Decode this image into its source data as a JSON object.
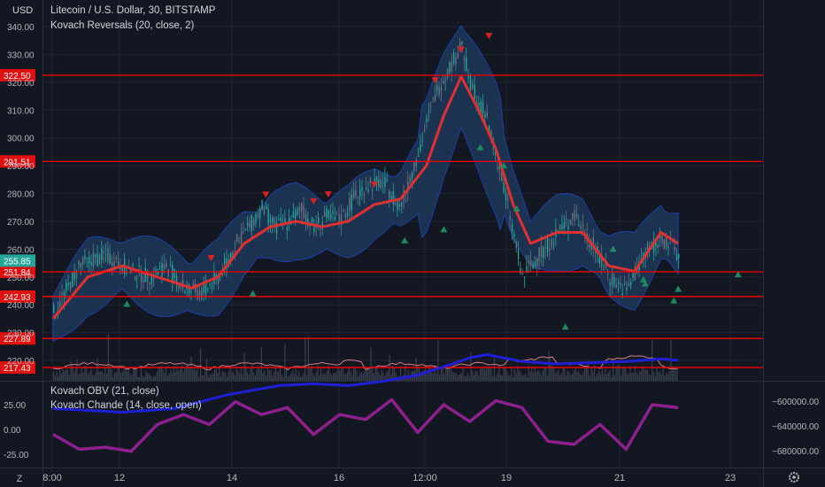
{
  "header": {
    "currency": "USD",
    "symbol_line": "Litecoin / U.S. Dollar, 30, BITSTAMP",
    "indicator_line": "Kovach Reversals (20, close, 2)"
  },
  "lower_pane": {
    "legend_obv": "Kovach OBV (21, close)",
    "legend_chande": "Kovach Chande (14, close, open)",
    "left_ticks": [
      "25.00",
      "0.00",
      "-25.00"
    ],
    "right_ticks": [
      "−600000.00",
      "−640000.00",
      "−680000.00"
    ]
  },
  "time_axis": {
    "labels": [
      "8:00",
      "12",
      "14",
      "16",
      "12:00",
      "19",
      "21",
      "23"
    ]
  },
  "corner": {
    "left_label": "Z",
    "right_icon": "gear-icon"
  },
  "colors": {
    "background": "#131722",
    "candle": "#26a69a",
    "band_fill": "#1f3d60",
    "band_line": "#1e3fa8",
    "ma_line": "#e03030",
    "level_line": "#ff0000",
    "signal_down": "#e02020",
    "signal_up": "#1f8a60",
    "obv_line": "#1f1fd6",
    "chande_line": "#8e1f8e"
  },
  "chart_data": {
    "type": "candlestick",
    "title": "Litecoin / U.S. Dollar, 30, BITSTAMP",
    "y_axis_ticks": [
      "340.00",
      "330.00",
      "320.00",
      "310.00",
      "300.00",
      "290.00",
      "280.00",
      "270.00",
      "260.00",
      "250.00",
      "240.00",
      "230.00",
      "220.00"
    ],
    "ylim": [
      214,
      344
    ],
    "current_price_label": "255.85",
    "horizontal_levels": [
      {
        "label": "322.50",
        "value": 322.5
      },
      {
        "label": "291.51",
        "value": 291.51
      },
      {
        "label": "251.84",
        "value": 251.84
      },
      {
        "label": "242.93",
        "value": 242.93
      },
      {
        "label": "227.89",
        "value": 227.89
      },
      {
        "label": "217.43",
        "value": 217.43
      }
    ],
    "price_path_x": [
      0,
      3,
      6,
      9,
      11,
      13,
      15,
      17,
      19,
      21,
      22.5,
      24,
      25.5,
      27,
      28.5,
      30,
      31.5,
      33,
      34.5,
      36,
      38,
      40,
      42,
      44,
      45.5,
      47,
      48,
      50,
      52,
      54,
      56,
      58,
      60,
      62,
      64,
      66,
      68,
      70,
      72
    ],
    "price_path_y": [
      237,
      254,
      258,
      252,
      250,
      254,
      246,
      244,
      250,
      262,
      268,
      275,
      268,
      270,
      274,
      268,
      272,
      270,
      278,
      283,
      284,
      275,
      295,
      316,
      325,
      333,
      320,
      306,
      280,
      250,
      258,
      266,
      272,
      262,
      250,
      245,
      258,
      264,
      258
    ],
    "ma_x": [
      0,
      4,
      8,
      12,
      16,
      19,
      22,
      25,
      28,
      31,
      34,
      37,
      40,
      43,
      45,
      47,
      49,
      51,
      53,
      55,
      58,
      61,
      64,
      67,
      70,
      72
    ],
    "ma_y": [
      235,
      250,
      254,
      250,
      246,
      250,
      262,
      268,
      270,
      268,
      270,
      276,
      278,
      290,
      308,
      322,
      310,
      296,
      276,
      262,
      266,
      266,
      254,
      252,
      266,
      262
    ],
    "signals_down": [
      [
        18.2,
        256.6
      ],
      [
        24.5,
        279.4
      ],
      [
        30,
        277
      ],
      [
        31.7,
        279.5
      ],
      [
        37,
        283
      ],
      [
        44,
        320.5
      ],
      [
        47,
        331.5
      ],
      [
        50.2,
        336.4
      ]
    ],
    "signals_up": [
      [
        8.5,
        240.2
      ],
      [
        23,
        244
      ],
      [
        40.5,
        263
      ],
      [
        45,
        267
      ],
      [
        49.2,
        296.5
      ],
      [
        51.9,
        290
      ],
      [
        53.4,
        274.5
      ],
      [
        59,
        232
      ],
      [
        64.5,
        260
      ],
      [
        68,
        249
      ],
      [
        68.2,
        247.5
      ],
      [
        71.5,
        241.4
      ],
      [
        72,
        245.6
      ],
      [
        78.9,
        250.8
      ]
    ],
    "time_labels": [
      "8:00",
      "12",
      "14",
      "16",
      "12:00",
      "19",
      "21",
      "23"
    ],
    "lower": {
      "left_ylim": [
        -32,
        36
      ],
      "right_ylim": [
        -700000,
        -580000
      ],
      "obv_x": [
        0,
        8,
        14,
        20,
        26,
        30,
        34,
        38,
        42,
        46,
        48,
        50,
        54,
        58,
        62,
        66,
        70,
        72
      ],
      "obv_y": [
        -612000,
        -618000,
        -612000,
        -590000,
        -575000,
        -572000,
        -575000,
        -568000,
        -558000,
        -540000,
        -530000,
        -525000,
        -536000,
        -540000,
        -538000,
        -536000,
        -532000,
        -534000
      ],
      "chande_x": [
        0,
        3,
        6,
        9,
        12,
        15,
        18,
        21,
        24,
        27,
        30,
        33,
        36,
        39,
        42,
        45,
        48,
        51,
        54,
        57,
        60,
        63,
        66,
        69,
        72
      ],
      "chande_y": [
        -5,
        -20,
        -18,
        -22,
        5,
        15,
        5,
        28,
        15,
        22,
        -5,
        15,
        10,
        30,
        -3,
        25,
        8,
        29,
        22,
        -12,
        -15,
        5,
        -20,
        25,
        22
      ]
    }
  }
}
